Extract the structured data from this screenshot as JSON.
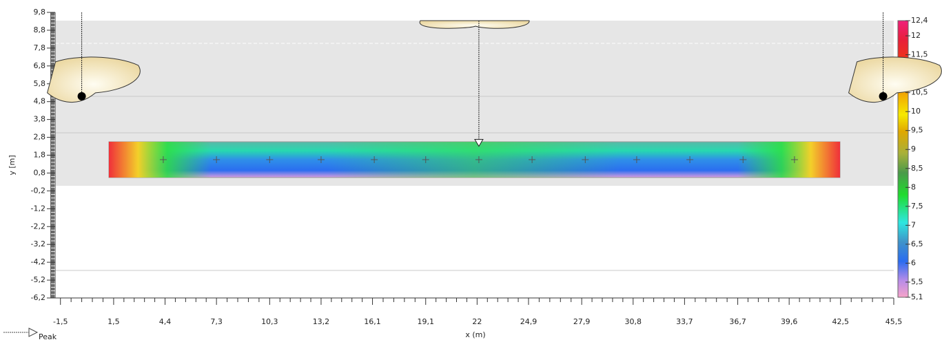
{
  "chart_data": {
    "type": "heatmap",
    "xlabel": "x (m)",
    "ylabel": "y [m]",
    "legend": "Peak",
    "xlim": [
      -1.8,
      45.5
    ],
    "ylim": [
      -6.2,
      9.8
    ],
    "xticks": [
      {
        "value": -1.5,
        "label": "-1,5"
      },
      {
        "value": 1.5,
        "label": "1,5"
      },
      {
        "value": 4.4,
        "label": "4,4"
      },
      {
        "value": 7.3,
        "label": "7,3"
      },
      {
        "value": 10.3,
        "label": "10,3"
      },
      {
        "value": 13.2,
        "label": "13,2"
      },
      {
        "value": 16.1,
        "label": "16,1"
      },
      {
        "value": 19.1,
        "label": "19,1"
      },
      22,
      {
        "value": 24.9,
        "label": "24,9"
      },
      {
        "value": 27.9,
        "label": "27,9"
      },
      {
        "value": 30.8,
        "label": "30,8"
      },
      {
        "value": 33.7,
        "label": "33,7"
      },
      {
        "value": 36.7,
        "label": "36,7"
      },
      {
        "value": 39.6,
        "label": "39,6"
      },
      {
        "value": 42.5,
        "label": "42,5"
      },
      {
        "value": 45.5,
        "label": "45,5"
      }
    ],
    "yticks": [
      {
        "value": 9.8,
        "label": "9,8"
      },
      {
        "value": 8.8,
        "label": "8,8"
      },
      {
        "value": 7.8,
        "label": "7,8"
      },
      {
        "value": 6.8,
        "label": "6,8"
      },
      {
        "value": 5.8,
        "label": "5,8"
      },
      {
        "value": 4.8,
        "label": "4,8"
      },
      {
        "value": 3.8,
        "label": "3,8"
      },
      {
        "value": 2.8,
        "label": "2,8"
      },
      {
        "value": 1.8,
        "label": "1,8"
      },
      {
        "value": 0.8,
        "label": "0,8"
      },
      {
        "value": -0.2,
        "label": "-0,2"
      },
      {
        "value": -1.2,
        "label": "-1,2"
      },
      {
        "value": -2.2,
        "label": "-2,2"
      },
      {
        "value": -3.2,
        "label": "-3,2"
      },
      {
        "value": -4.2,
        "label": "-4,2"
      },
      {
        "value": -5.2,
        "label": "-5,2"
      },
      {
        "value": -6.2,
        "label": "-6,2"
      }
    ],
    "clim": [
      5.1,
      12.4
    ],
    "cticks": [
      {
        "value": 12.4,
        "label": "12,4"
      },
      12,
      {
        "value": 11.5,
        "label": "11,5"
      },
      11,
      {
        "value": 10.5,
        "label": "10,5"
      },
      10,
      {
        "value": 9.5,
        "label": "9,5"
      },
      9,
      {
        "value": 8.5,
        "label": "8,5"
      },
      8,
      {
        "value": 7.5,
        "label": "7,5"
      },
      7,
      {
        "value": 6.5,
        "label": "6,5"
      },
      6,
      {
        "value": 5.5,
        "label": "5,5"
      },
      {
        "value": 5.1,
        "label": "5,1"
      }
    ],
    "points": {
      "x": [
        4.3,
        7.3,
        10.3,
        13.2,
        16.2,
        19.1,
        22.1,
        25.1,
        28.1,
        31.0,
        34.0,
        37.0,
        39.9
      ],
      "y": [
        1.55,
        1.55,
        1.55,
        1.55,
        1.55,
        1.55,
        1.55,
        1.55,
        1.55,
        1.55,
        1.55,
        1.55,
        1.55
      ]
    },
    "sources": {
      "x": [
        -0.3,
        44.9
      ],
      "y": [
        5.1,
        5.1
      ]
    },
    "peak": {
      "x": 22.1,
      "y": 2.3
    }
  }
}
